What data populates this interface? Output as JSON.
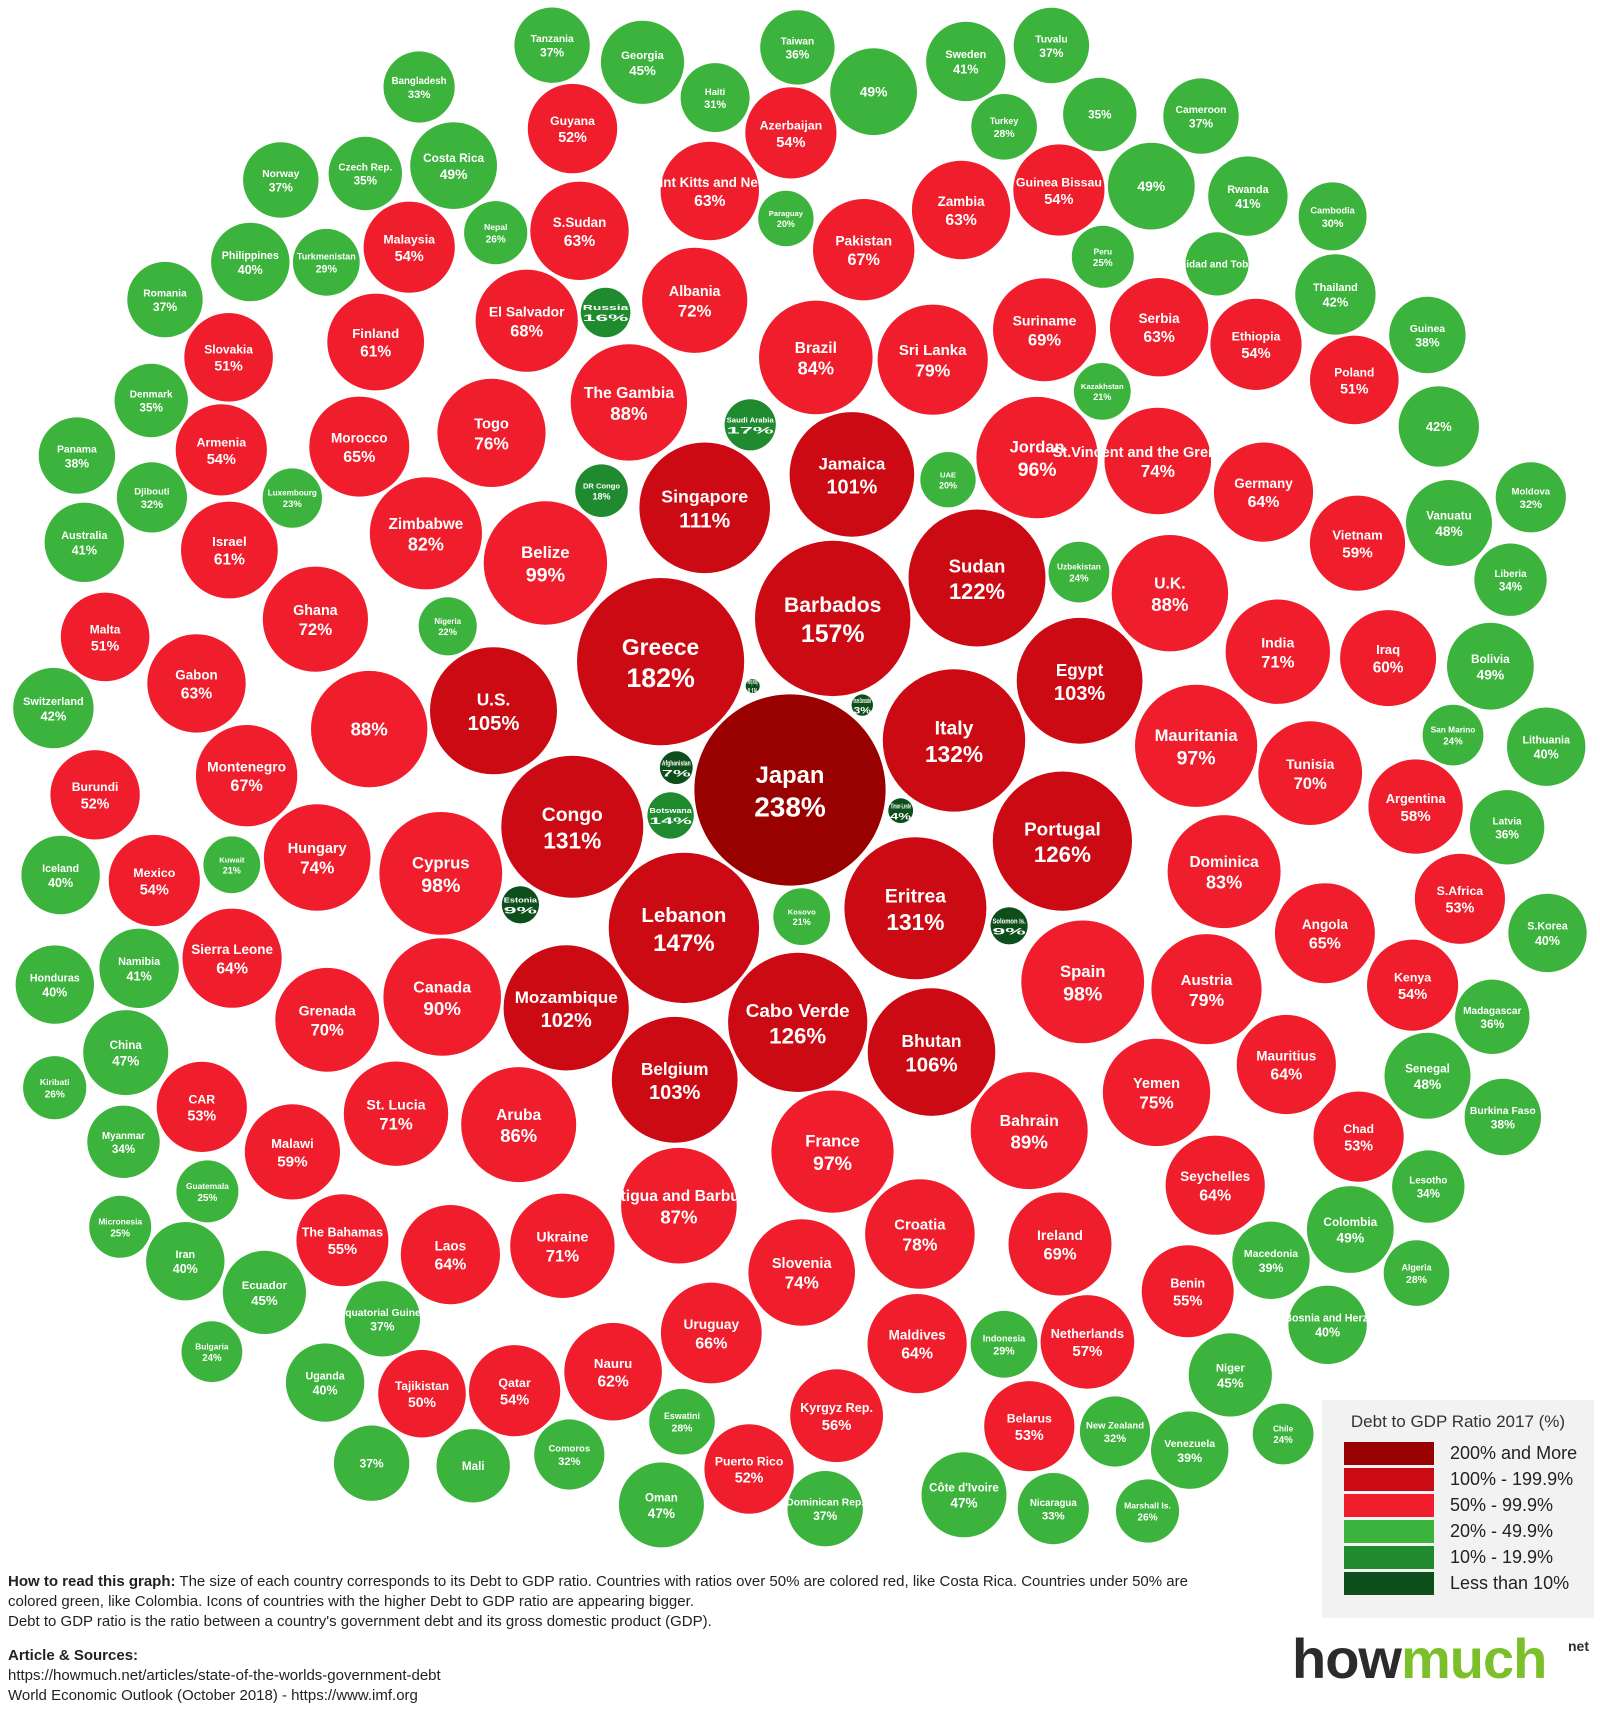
{
  "legend": {
    "title": "Debt to GDP Ratio 2017 (%)",
    "items": [
      {
        "label": "200% and More",
        "color": "#990000"
      },
      {
        "label": "100% - 199.9%",
        "color": "#cc0a14"
      },
      {
        "label": "50% - 99.9%",
        "color": "#f01e2c"
      },
      {
        "label": "20% - 49.9%",
        "color": "#3cb33c"
      },
      {
        "label": "10% - 19.9%",
        "color": "#1f8a2e"
      },
      {
        "label": "Less than 10%",
        "color": "#0d4f1a"
      }
    ]
  },
  "footer": {
    "how_label": "How to read this graph:",
    "how_text": "The size of each country corresponds to its Debt to GDP ratio. Countries with ratios over 50% are colored red, like Costa Rica. Countries under 50% are colored green, like Colombia. Icons of countries with the higher Debt to GDP ratio are appearing bigger.",
    "definition": "Debt to GDP ratio is the ratio between a country's government debt and its gross domestic product (GDP).",
    "sources_label": "Article & Sources:",
    "source_1": "https://howmuch.net/articles/state-of-the-worlds-government-debt",
    "source_2": "World Economic Outlook (October 2018) - https://www.imf.org"
  },
  "brand": {
    "how": "how",
    "much": "much",
    "suffix": "net"
  },
  "countries": [
    {
      "name": "Japan",
      "value": "238%",
      "ratio": 238
    },
    {
      "name": "Greece",
      "value": "182%",
      "ratio": 182
    },
    {
      "name": "Barbados",
      "value": "157%",
      "ratio": 157
    },
    {
      "name": "Lebanon",
      "value": "147%",
      "ratio": 147
    },
    {
      "name": "Italy",
      "value": "132%",
      "ratio": 132
    },
    {
      "name": "Eritrea",
      "value": "131%",
      "ratio": 131
    },
    {
      "name": "Congo",
      "value": "131%",
      "ratio": 131
    },
    {
      "name": "Cabo Verde",
      "value": "126%",
      "ratio": 126
    },
    {
      "name": "Portugal",
      "value": "126%",
      "ratio": 126
    },
    {
      "name": "Sudan",
      "value": "122%",
      "ratio": 122
    },
    {
      "name": "Singapore",
      "value": "111%",
      "ratio": 111
    },
    {
      "name": "Bhutan",
      "value": "106%",
      "ratio": 106
    },
    {
      "name": "U.S.",
      "value": "105%",
      "ratio": 105
    },
    {
      "name": "Egypt",
      "value": "103%",
      "ratio": 103
    },
    {
      "name": "Belgium",
      "value": "103%",
      "ratio": 103
    },
    {
      "name": "Mozambique",
      "value": "102%",
      "ratio": 102
    },
    {
      "name": "Jamaica",
      "value": "101%",
      "ratio": 101
    },
    {
      "name": "Belize",
      "value": "99%",
      "ratio": 99
    },
    {
      "name": "Spain",
      "value": "98%",
      "ratio": 98
    },
    {
      "name": "Cyprus",
      "value": "98%",
      "ratio": 98
    },
    {
      "name": "France",
      "value": "97%",
      "ratio": 97
    },
    {
      "name": "Mauritania",
      "value": "97%",
      "ratio": 97
    },
    {
      "name": "Jordan",
      "value": "96%",
      "ratio": 96
    },
    {
      "name": "Canada",
      "value": "90%",
      "ratio": 90
    },
    {
      "name": "Bahrain",
      "value": "89%",
      "ratio": 89
    },
    {
      "name": "The Gambia",
      "value": "88%",
      "ratio": 88
    },
    {
      "name": "",
      "value": "88%",
      "ratio": 88
    },
    {
      "name": "U.K.",
      "value": "88%",
      "ratio": 88
    },
    {
      "name": "Antigua and Barbuda",
      "value": "87%",
      "ratio": 87
    },
    {
      "name": "Aruba",
      "value": "86%",
      "ratio": 86
    },
    {
      "name": "Brazil",
      "value": "84%",
      "ratio": 84
    },
    {
      "name": "Dominica",
      "value": "83%",
      "ratio": 83
    },
    {
      "name": "Zimbabwe",
      "value": "82%",
      "ratio": 82
    },
    {
      "name": "Sri Lanka",
      "value": "79%",
      "ratio": 79
    },
    {
      "name": "Austria",
      "value": "79%",
      "ratio": 79
    },
    {
      "name": "Croatia",
      "value": "78%",
      "ratio": 78
    },
    {
      "name": "Togo",
      "value": "76%",
      "ratio": 76
    },
    {
      "name": "Yemen",
      "value": "75%",
      "ratio": 75
    },
    {
      "name": "Hungary",
      "value": "74%",
      "ratio": 74
    },
    {
      "name": "Slovenia",
      "value": "74%",
      "ratio": 74
    },
    {
      "name": "St.Vincent and the Grenadines",
      "value": "74%",
      "ratio": 74
    },
    {
      "name": "Albania",
      "value": "72%",
      "ratio": 72
    },
    {
      "name": "Ghana",
      "value": "72%",
      "ratio": 72
    },
    {
      "name": "India",
      "value": "71%",
      "ratio": 71
    },
    {
      "name": "Ukraine",
      "value": "71%",
      "ratio": 71
    },
    {
      "name": "St. Lucia",
      "value": "71%",
      "ratio": 71
    },
    {
      "name": "Grenada",
      "value": "70%",
      "ratio": 70
    },
    {
      "name": "Tunisia",
      "value": "70%",
      "ratio": 70
    },
    {
      "name": "Suriname",
      "value": "69%",
      "ratio": 69
    },
    {
      "name": "Ireland",
      "value": "69%",
      "ratio": 69
    },
    {
      "name": "El Salvador",
      "value": "68%",
      "ratio": 68
    },
    {
      "name": "Montenegro",
      "value": "67%",
      "ratio": 67
    },
    {
      "name": "Pakistan",
      "value": "67%",
      "ratio": 67
    },
    {
      "name": "Uruguay",
      "value": "66%",
      "ratio": 66
    },
    {
      "name": "Morocco",
      "value": "65%",
      "ratio": 65
    },
    {
      "name": "Angola",
      "value": "65%",
      "ratio": 65
    },
    {
      "name": "Germany",
      "value": "64%",
      "ratio": 64
    },
    {
      "name": "Mauritius",
      "value": "64%",
      "ratio": 64
    },
    {
      "name": "Maldives",
      "value": "64%",
      "ratio": 64
    },
    {
      "name": "Laos",
      "value": "64%",
      "ratio": 64
    },
    {
      "name": "Seychelles",
      "value": "64%",
      "ratio": 64
    },
    {
      "name": "Sierra Leone",
      "value": "64%",
      "ratio": 64
    },
    {
      "name": "Serbia",
      "value": "63%",
      "ratio": 63
    },
    {
      "name": "S.Sudan",
      "value": "63%",
      "ratio": 63
    },
    {
      "name": "Gabon",
      "value": "63%",
      "ratio": 63
    },
    {
      "name": "Saint Kitts and Nevis",
      "value": "63%",
      "ratio": 63
    },
    {
      "name": "Zambia",
      "value": "63%",
      "ratio": 63
    },
    {
      "name": "Nauru",
      "value": "62%",
      "ratio": 62
    },
    {
      "name": "Israel",
      "value": "61%",
      "ratio": 61
    },
    {
      "name": "Finland",
      "value": "61%",
      "ratio": 61
    },
    {
      "name": "Iraq",
      "value": "60%",
      "ratio": 60
    },
    {
      "name": "Malawi",
      "value": "59%",
      "ratio": 59
    },
    {
      "name": "Vietnam",
      "value": "59%",
      "ratio": 59
    },
    {
      "name": "Argentina",
      "value": "58%",
      "ratio": 58
    },
    {
      "name": "Netherlands",
      "value": "57%",
      "ratio": 57
    },
    {
      "name": "Kyrgyz Rep.",
      "value": "56%",
      "ratio": 56
    },
    {
      "name": "The Bahamas",
      "value": "55%",
      "ratio": 55
    },
    {
      "name": "Benin",
      "value": "55%",
      "ratio": 55
    },
    {
      "name": "Mexico",
      "value": "54%",
      "ratio": 54
    },
    {
      "name": "Ethiopia",
      "value": "54%",
      "ratio": 54
    },
    {
      "name": "Kenya",
      "value": "54%",
      "ratio": 54
    },
    {
      "name": "Azerbaijan",
      "value": "54%",
      "ratio": 54
    },
    {
      "name": "Guinea Bissau",
      "value": "54%",
      "ratio": 54
    },
    {
      "name": "Qatar",
      "value": "54%",
      "ratio": 54
    },
    {
      "name": "Armenia",
      "value": "54%",
      "ratio": 54
    },
    {
      "name": "Malaysia",
      "value": "54%",
      "ratio": 54
    },
    {
      "name": "Chad",
      "value": "53%",
      "ratio": 53
    },
    {
      "name": "CAR",
      "value": "53%",
      "ratio": 53
    },
    {
      "name": "S.Africa",
      "value": "53%",
      "ratio": 53
    },
    {
      "name": "Belarus",
      "value": "53%",
      "ratio": 53
    },
    {
      "name": "Puerto Rico",
      "value": "52%",
      "ratio": 52
    },
    {
      "name": "Burundi",
      "value": "52%",
      "ratio": 52
    },
    {
      "name": "Guyana",
      "value": "52%",
      "ratio": 52
    },
    {
      "name": "Poland",
      "value": "51%",
      "ratio": 51
    },
    {
      "name": "Malta",
      "value": "51%",
      "ratio": 51
    },
    {
      "name": "Slovakia",
      "value": "51%",
      "ratio": 51
    },
    {
      "name": "Tajikistan",
      "value": "50%",
      "ratio": 50
    },
    {
      "name": "",
      "value": "49%",
      "ratio": 49
    },
    {
      "name": "",
      "value": "49%",
      "ratio": 49
    },
    {
      "name": "Costa Rica",
      "value": "49%",
      "ratio": 49
    },
    {
      "name": "Bolivia",
      "value": "49%",
      "ratio": 49
    },
    {
      "name": "Colombia",
      "value": "49%",
      "ratio": 49
    },
    {
      "name": "Senegal",
      "value": "48%",
      "ratio": 48
    },
    {
      "name": "Vanuatu",
      "value": "48%",
      "ratio": 48
    },
    {
      "name": "China",
      "value": "47%",
      "ratio": 47
    },
    {
      "name": "Côte d'Ivoire",
      "value": "47%",
      "ratio": 47
    },
    {
      "name": "Oman",
      "value": "47%",
      "ratio": 47
    },
    {
      "name": "Ecuador",
      "value": "45%",
      "ratio": 45
    },
    {
      "name": "Niger",
      "value": "45%",
      "ratio": 45
    },
    {
      "name": "Georgia",
      "value": "45%",
      "ratio": 45
    },
    {
      "name": "Thailand",
      "value": "42%",
      "ratio": 42
    },
    {
      "name": "Switzerland",
      "value": "42%",
      "ratio": 42
    },
    {
      "name": "",
      "value": "42%",
      "ratio": 42
    },
    {
      "name": "Namibia",
      "value": "41%",
      "ratio": 41
    },
    {
      "name": "Australia",
      "value": "41%",
      "ratio": 41
    },
    {
      "name": "Sweden",
      "value": "41%",
      "ratio": 41
    },
    {
      "name": "Rwanda",
      "value": "41%",
      "ratio": 41
    },
    {
      "name": "Iceland",
      "value": "40%",
      "ratio": 40
    },
    {
      "name": "Uganda",
      "value": "40%",
      "ratio": 40
    },
    {
      "name": "Philippines",
      "value": "40%",
      "ratio": 40
    },
    {
      "name": "Lithuania",
      "value": "40%",
      "ratio": 40
    },
    {
      "name": "Bosnia and Herz.",
      "value": "40%",
      "ratio": 40
    },
    {
      "name": "Honduras",
      "value": "40%",
      "ratio": 40
    },
    {
      "name": "Iran",
      "value": "40%",
      "ratio": 40
    },
    {
      "name": "S.Korea",
      "value": "40%",
      "ratio": 40
    },
    {
      "name": "Macedonia",
      "value": "39%",
      "ratio": 39
    },
    {
      "name": "Venezuela",
      "value": "39%",
      "ratio": 39
    },
    {
      "name": "Guinea",
      "value": "38%",
      "ratio": 38
    },
    {
      "name": "Burkina Faso",
      "value": "38%",
      "ratio": 38
    },
    {
      "name": "Panama",
      "value": "38%",
      "ratio": 38
    },
    {
      "name": "Equatorial Guinea",
      "value": "37%",
      "ratio": 37
    },
    {
      "name": "Dominican Rep.",
      "value": "37%",
      "ratio": 37
    },
    {
      "name": "Tanzania",
      "value": "37%",
      "ratio": 37
    },
    {
      "name": "Tuvalu",
      "value": "37%",
      "ratio": 37
    },
    {
      "name": "Cameroon",
      "value": "37%",
      "ratio": 37
    },
    {
      "name": "",
      "value": "37%",
      "ratio": 37
    },
    {
      "name": "Romania",
      "value": "37%",
      "ratio": 37
    },
    {
      "name": "Norway",
      "value": "37%",
      "ratio": 37
    },
    {
      "name": "Latvia",
      "value": "36%",
      "ratio": 36
    },
    {
      "name": "Madagascar",
      "value": "36%",
      "ratio": 36
    },
    {
      "name": "Taiwan",
      "value": "36%",
      "ratio": 36
    },
    {
      "name": "",
      "value": "35%",
      "ratio": 35
    },
    {
      "name": "Mali",
      "value": "",
      "ratio": 35
    },
    {
      "name": "Denmark",
      "value": "35%",
      "ratio": 35
    },
    {
      "name": "Czech Rep.",
      "value": "35%",
      "ratio": 35
    },
    {
      "name": "Liberia",
      "value": "34%",
      "ratio": 34
    },
    {
      "name": "Lesotho",
      "value": "34%",
      "ratio": 34
    },
    {
      "name": "Myanmar",
      "value": "34%",
      "ratio": 34
    },
    {
      "name": "Nicaragua",
      "value": "33%",
      "ratio": 33
    },
    {
      "name": "Bangladesh",
      "value": "33%",
      "ratio": 33
    },
    {
      "name": "Comoros",
      "value": "32%",
      "ratio": 32
    },
    {
      "name": "Djibouti",
      "value": "32%",
      "ratio": 32
    },
    {
      "name": "New Zealand",
      "value": "32%",
      "ratio": 32
    },
    {
      "name": "Moldova",
      "value": "32%",
      "ratio": 32
    },
    {
      "name": "Haiti",
      "value": "31%",
      "ratio": 31
    },
    {
      "name": "Cambodia",
      "value": "30%",
      "ratio": 30
    },
    {
      "name": "Indonesia",
      "value": "29%",
      "ratio": 29
    },
    {
      "name": "Turkmenistan",
      "value": "29%",
      "ratio": 29
    },
    {
      "name": "Eswatini",
      "value": "28%",
      "ratio": 28
    },
    {
      "name": "Turkey",
      "value": "28%",
      "ratio": 28
    },
    {
      "name": "Algeria",
      "value": "28%",
      "ratio": 28
    },
    {
      "name": "Nepal",
      "value": "26%",
      "ratio": 26
    },
    {
      "name": "Trinidad and Tobago",
      "value": "",
      "ratio": 26
    },
    {
      "name": "Kiribati",
      "value": "26%",
      "ratio": 26
    },
    {
      "name": "Marshall Is.",
      "value": "26%",
      "ratio": 26
    },
    {
      "name": "Peru",
      "value": "25%",
      "ratio": 25
    },
    {
      "name": "Guatemala",
      "value": "25%",
      "ratio": 25
    },
    {
      "name": "Micronesia",
      "value": "25%",
      "ratio": 25
    },
    {
      "name": "Uzbekistan",
      "value": "24%",
      "ratio": 24
    },
    {
      "name": "San Marino",
      "value": "24%",
      "ratio": 24
    },
    {
      "name": "Bulgaria",
      "value": "24%",
      "ratio": 24
    },
    {
      "name": "Chile",
      "value": "24%",
      "ratio": 24
    },
    {
      "name": "Luxembourg",
      "value": "23%",
      "ratio": 23
    },
    {
      "name": "Nigeria",
      "value": "22%",
      "ratio": 22
    },
    {
      "name": "Kosovo",
      "value": "21%",
      "ratio": 21
    },
    {
      "name": "Kazakhstan",
      "value": "21%",
      "ratio": 21
    },
    {
      "name": "Kuwait",
      "value": "21%",
      "ratio": 21
    },
    {
      "name": "UAE",
      "value": "20%",
      "ratio": 20
    },
    {
      "name": "Paraguay",
      "value": "20%",
      "ratio": 20
    },
    {
      "name": "DR Congo",
      "value": "18%",
      "ratio": 18
    },
    {
      "name": "Saudi Arabia",
      "value": "17%",
      "ratio": 17
    },
    {
      "name": "Russia",
      "value": "16%",
      "ratio": 16
    },
    {
      "name": "Botswana",
      "value": "14%",
      "ratio": 14
    },
    {
      "name": "Solomon Is.",
      "value": "9%",
      "ratio": 9
    },
    {
      "name": "Estonia",
      "value": "9%",
      "ratio": 9
    },
    {
      "name": "Afghanistan",
      "value": "7%",
      "ratio": 7
    },
    {
      "name": "Timor-Leste",
      "value": "4%",
      "ratio": 4
    },
    {
      "name": "Brunei Darussalam",
      "value": "3%",
      "ratio": 3
    },
    {
      "name": "Hong Kong",
      "value": "0.1%",
      "ratio": 0.1
    }
  ]
}
